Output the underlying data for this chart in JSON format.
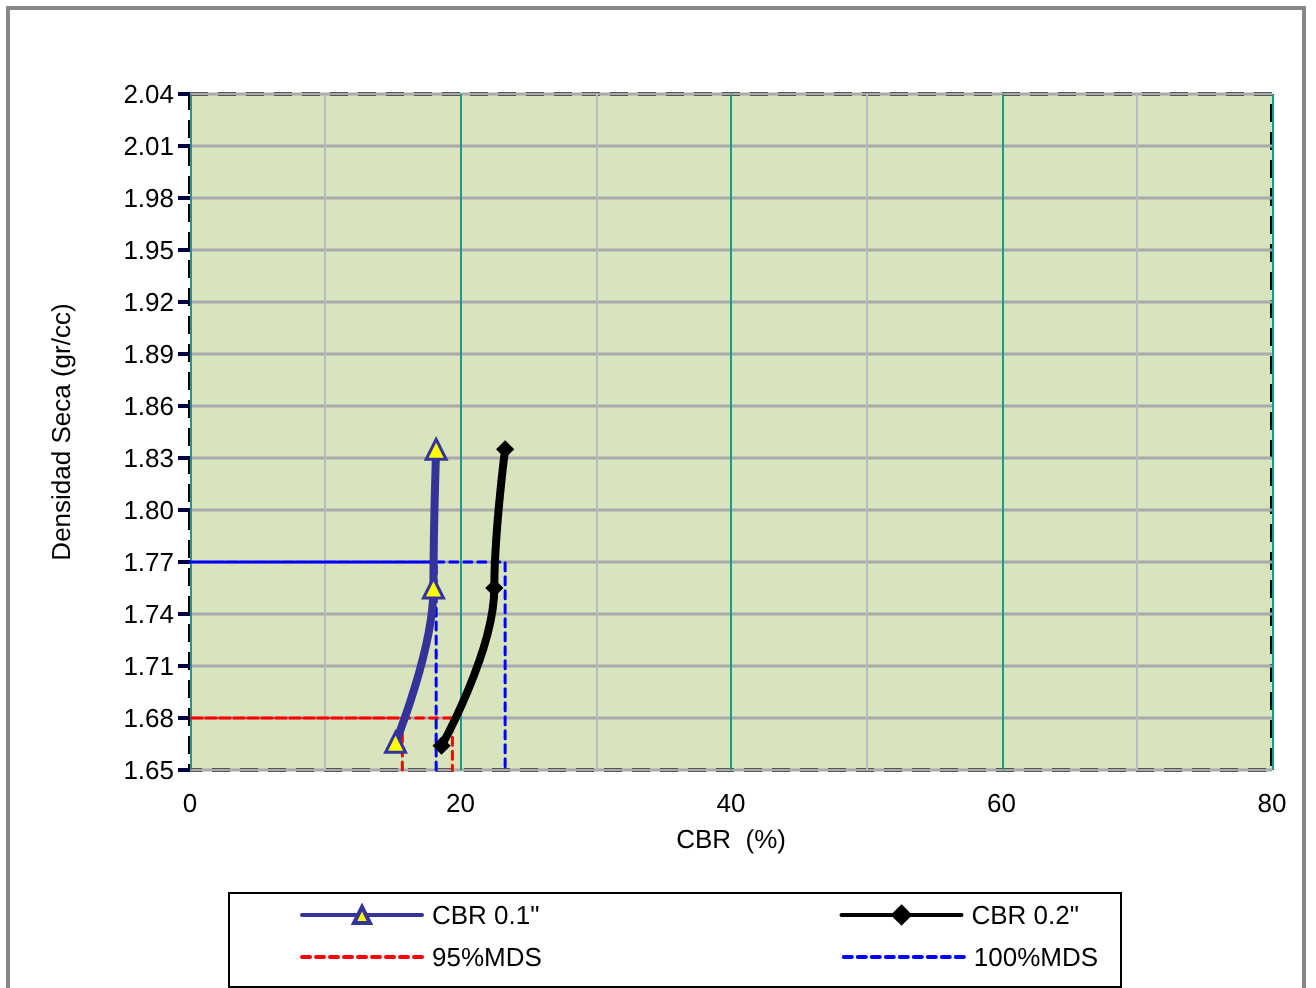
{
  "chart_data": {
    "type": "line",
    "xlabel": "CBR  (%)",
    "ylabel": "Densidad Seca (gr/cc)",
    "xlim": [
      0,
      80
    ],
    "xticks": [
      0,
      20,
      40,
      60,
      80
    ],
    "ylim": [
      1.65,
      2.04
    ],
    "yticks": [
      1.65,
      1.68,
      1.71,
      1.74,
      1.77,
      {
        "value": 1.8,
        "label": "1.80"
      },
      1.83,
      1.86,
      1.89,
      1.92,
      1.95,
      1.98,
      2.01,
      2.04
    ],
    "grid": true,
    "legend": "bottom",
    "series": [
      {
        "name": "CBR 0.1\"",
        "color": "#333399",
        "marker": "triangle",
        "line_style": "solid",
        "x": [
          15.2,
          18.0,
          18.2
        ],
        "values": [
          1.666,
          1.755,
          1.835
        ]
      },
      {
        "name": "CBR 0.2\"",
        "color": "#000000",
        "marker": "diamond",
        "line_style": "solid",
        "x": [
          18.6,
          22.5,
          23.3
        ],
        "values": [
          1.664,
          1.755,
          1.835
        ]
      },
      {
        "name": "95%MDS",
        "color": "#ff0000",
        "marker": "none",
        "line_style": "dashed",
        "x": [
          15.7,
          15.7,
          0,
          19.4,
          19.4
        ],
        "values": [
          1.65,
          1.68,
          1.68,
          1.68,
          1.65
        ]
      },
      {
        "name": "100%MDS",
        "color": "#0000ff",
        "marker": "none",
        "line_style": "dashed",
        "x": [
          18.2,
          18.2,
          0,
          23.3,
          23.3
        ],
        "values": [
          1.65,
          1.77,
          1.77,
          1.77,
          1.65
        ]
      }
    ]
  }
}
